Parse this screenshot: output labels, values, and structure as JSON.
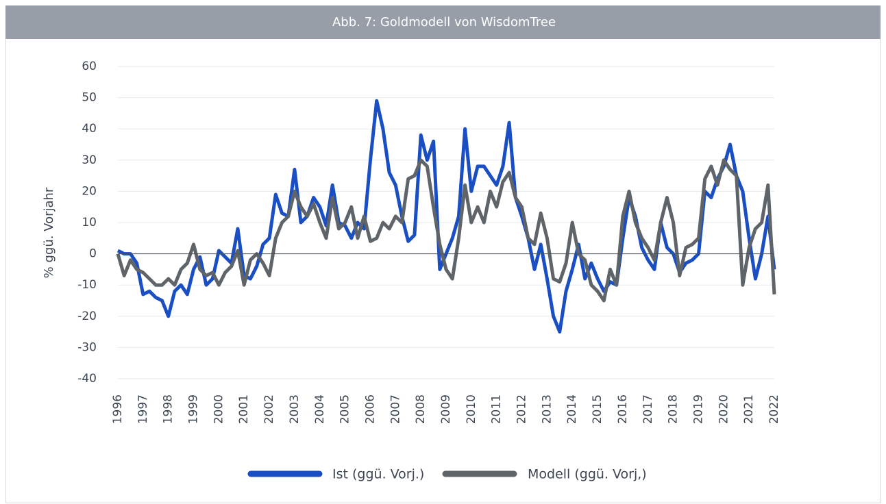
{
  "chart_data": {
    "type": "line",
    "title": "Abb. 7: Goldmodell von WisdomTree",
    "ylabel": "% ggü. Vorjahr",
    "xlim": [
      1996,
      2022
    ],
    "xticks": [
      1996,
      1997,
      1998,
      1999,
      2000,
      2001,
      2002,
      2003,
      2004,
      2005,
      2006,
      2007,
      2008,
      2009,
      2010,
      2011,
      2012,
      2013,
      2014,
      2015,
      2016,
      2017,
      2018,
      2019,
      2020,
      2021,
      2022
    ],
    "ylim": [
      -40,
      60
    ],
    "yticks": [
      -40,
      -30,
      -20,
      -10,
      0,
      10,
      20,
      30,
      40,
      50,
      60
    ],
    "grid": true,
    "legend": "bottom",
    "x": [
      1996,
      1996.25,
      1996.5,
      1996.75,
      1997,
      1997.25,
      1997.5,
      1997.75,
      1998,
      1998.25,
      1998.5,
      1998.75,
      1999,
      1999.25,
      1999.5,
      1999.75,
      2000,
      2000.25,
      2000.5,
      2000.75,
      2001,
      2001.25,
      2001.5,
      2001.75,
      2002,
      2002.25,
      2002.5,
      2002.75,
      2003,
      2003.25,
      2003.5,
      2003.75,
      2004,
      2004.25,
      2004.5,
      2004.75,
      2005,
      2005.25,
      2005.5,
      2005.75,
      2006,
      2006.25,
      2006.5,
      2006.75,
      2007,
      2007.25,
      2007.5,
      2007.75,
      2008,
      2008.25,
      2008.5,
      2008.75,
      2009,
      2009.25,
      2009.5,
      2009.75,
      2010,
      2010.25,
      2010.5,
      2010.75,
      2011,
      2011.25,
      2011.5,
      2011.75,
      2012,
      2012.25,
      2012.5,
      2012.75,
      2013,
      2013.25,
      2013.5,
      2013.75,
      2014,
      2014.25,
      2014.5,
      2014.75,
      2015,
      2015.25,
      2015.5,
      2015.75,
      2016,
      2016.25,
      2016.5,
      2016.75,
      2017,
      2017.25,
      2017.5,
      2017.75,
      2018,
      2018.25,
      2018.5,
      2018.75,
      2019,
      2019.25,
      2019.5,
      2019.75,
      2020,
      2020.25,
      2020.5,
      2020.75,
      2021,
      2021.25,
      2021.5,
      2021.75,
      2022
    ],
    "series": [
      {
        "name": "Ist (ggü. Vorj.)",
        "color": "#1a4fc4",
        "values": [
          1,
          0,
          0,
          -3,
          -13,
          -12,
          -14,
          -15,
          -20,
          -12,
          -10,
          -13,
          -5,
          -1,
          -10,
          -8,
          1,
          -1,
          -3,
          8,
          -7,
          -8,
          -4,
          3,
          5,
          19,
          13,
          12,
          27,
          10,
          12,
          18,
          15,
          9,
          22,
          10,
          9,
          5,
          10,
          8,
          30,
          49,
          40,
          26,
          22,
          12,
          4,
          6,
          38,
          30,
          36,
          -5,
          0,
          5,
          12,
          40,
          20,
          28,
          28,
          25,
          22,
          28,
          42,
          18,
          12,
          5,
          -5,
          3,
          -8,
          -20,
          -25,
          -12,
          -5,
          3,
          -8,
          -3,
          -8,
          -12,
          -9,
          -10,
          5,
          18,
          12,
          2,
          -2,
          -5,
          10,
          2,
          0,
          -6,
          -3,
          -2,
          0,
          20,
          18,
          24,
          28,
          35,
          25,
          20,
          5,
          -8,
          0,
          12,
          -5
        ]
      },
      {
        "name": "Modell (ggü. Vorj,)",
        "color": "#5f6469",
        "values": [
          0,
          -7,
          -2,
          -5,
          -6,
          -8,
          -10,
          -10,
          -8,
          -10,
          -5,
          -3,
          3,
          -5,
          -7,
          -6,
          -10,
          -6,
          -4,
          1,
          -10,
          -2,
          0,
          -3,
          -7,
          5,
          10,
          12,
          20,
          15,
          12,
          16,
          10,
          5,
          18,
          8,
          10,
          15,
          5,
          12,
          4,
          5,
          10,
          8,
          12,
          10,
          24,
          25,
          30,
          28,
          15,
          3,
          -5,
          -8,
          5,
          22,
          10,
          15,
          10,
          20,
          15,
          23,
          26,
          18,
          15,
          5,
          3,
          13,
          5,
          -8,
          -9,
          -3,
          10,
          0,
          -2,
          -10,
          -12,
          -15,
          -5,
          -10,
          12,
          20,
          10,
          5,
          2,
          -2,
          10,
          18,
          10,
          -7,
          2,
          3,
          5,
          24,
          28,
          22,
          30,
          27,
          25,
          -10,
          2,
          8,
          10,
          22,
          -13
        ]
      }
    ]
  }
}
